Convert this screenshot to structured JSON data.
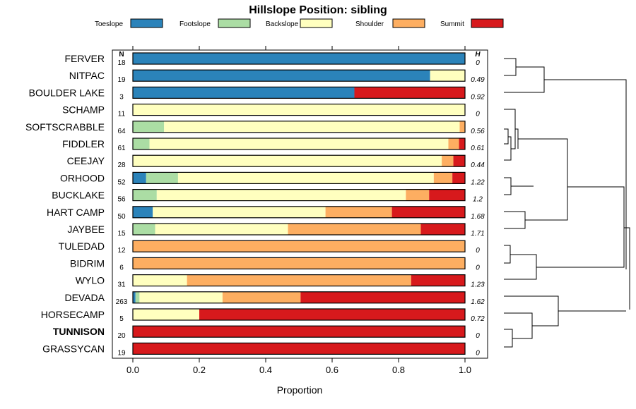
{
  "chart_data": {
    "type": "stacked-bar",
    "title": "Hillslope Position: sibling",
    "xlabel": "Proportion",
    "xlim": [
      0,
      1
    ],
    "xticks": [
      "0.0",
      "0.2",
      "0.4",
      "0.6",
      "0.8",
      "1.0"
    ],
    "n_header": "N",
    "h_header": "H",
    "legend": [
      {
        "label": "Toeslope",
        "color": "#2b83ba"
      },
      {
        "label": "Footslope",
        "color": "#abdda4"
      },
      {
        "label": "Backslope",
        "color": "#ffffbf"
      },
      {
        "label": "Shoulder",
        "color": "#fdae61"
      },
      {
        "label": "Summit",
        "color": "#d7191c"
      }
    ],
    "rows": [
      {
        "name": "FERVER",
        "n": "18",
        "h": "0",
        "bold": false,
        "values": [
          1.0,
          0,
          0,
          0,
          0
        ]
      },
      {
        "name": "NITPAC",
        "n": "19",
        "h": "0.49",
        "bold": false,
        "values": [
          0.895,
          0,
          0.105,
          0,
          0
        ]
      },
      {
        "name": "BOULDER LAKE",
        "n": "3",
        "h": "0.92",
        "bold": false,
        "values": [
          0.667,
          0,
          0,
          0,
          0.333
        ]
      },
      {
        "name": "SCHAMP",
        "n": "11",
        "h": "0",
        "bold": false,
        "values": [
          0,
          0,
          1.0,
          0,
          0
        ]
      },
      {
        "name": "SOFTSCRABBLE",
        "n": "64",
        "h": "0.56",
        "bold": false,
        "values": [
          0,
          0.094,
          0.89,
          0.016,
          0
        ]
      },
      {
        "name": "FIDDLER",
        "n": "61",
        "h": "0.61",
        "bold": false,
        "values": [
          0,
          0.05,
          0.9,
          0.032,
          0.018
        ]
      },
      {
        "name": "CEEJAY",
        "n": "28",
        "h": "0.44",
        "bold": false,
        "values": [
          0,
          0,
          0.93,
          0.035,
          0.035
        ]
      },
      {
        "name": "ORHOOD",
        "n": "52",
        "h": "1.22",
        "bold": false,
        "values": [
          0.04,
          0.096,
          0.77,
          0.056,
          0.038
        ]
      },
      {
        "name": "BUCKLAKE",
        "n": "56",
        "h": "1.2",
        "bold": false,
        "values": [
          0,
          0.072,
          0.75,
          0.07,
          0.108
        ]
      },
      {
        "name": "HART CAMP",
        "n": "50",
        "h": "1.68",
        "bold": false,
        "values": [
          0.06,
          0,
          0.52,
          0.2,
          0.22
        ]
      },
      {
        "name": "JAYBEE",
        "n": "15",
        "h": "1.71",
        "bold": false,
        "values": [
          0,
          0.067,
          0.4,
          0.4,
          0.133
        ]
      },
      {
        "name": "TULEDAD",
        "n": "12",
        "h": "0",
        "bold": false,
        "values": [
          0,
          0,
          0,
          1.0,
          0
        ]
      },
      {
        "name": "BIDRIM",
        "n": "6",
        "h": "0",
        "bold": false,
        "values": [
          0,
          0,
          0,
          1.0,
          0
        ]
      },
      {
        "name": "WYLO",
        "n": "31",
        "h": "1.23",
        "bold": false,
        "values": [
          0,
          0,
          0.163,
          0.675,
          0.162
        ]
      },
      {
        "name": "DEVADA",
        "n": "263",
        "h": "1.62",
        "bold": false,
        "values": [
          0.008,
          0.012,
          0.25,
          0.235,
          0.495
        ]
      },
      {
        "name": "HORSECAMP",
        "n": "5",
        "h": "0.72",
        "bold": false,
        "values": [
          0,
          0,
          0.2,
          0,
          0.8
        ]
      },
      {
        "name": "TUNNISON",
        "n": "20",
        "h": "0",
        "bold": true,
        "values": [
          0,
          0,
          0,
          0,
          1.0
        ]
      },
      {
        "name": "GRASSYCAN",
        "n": "19",
        "h": "0",
        "bold": false,
        "values": [
          0,
          0,
          0,
          0,
          1.0
        ]
      }
    ]
  }
}
